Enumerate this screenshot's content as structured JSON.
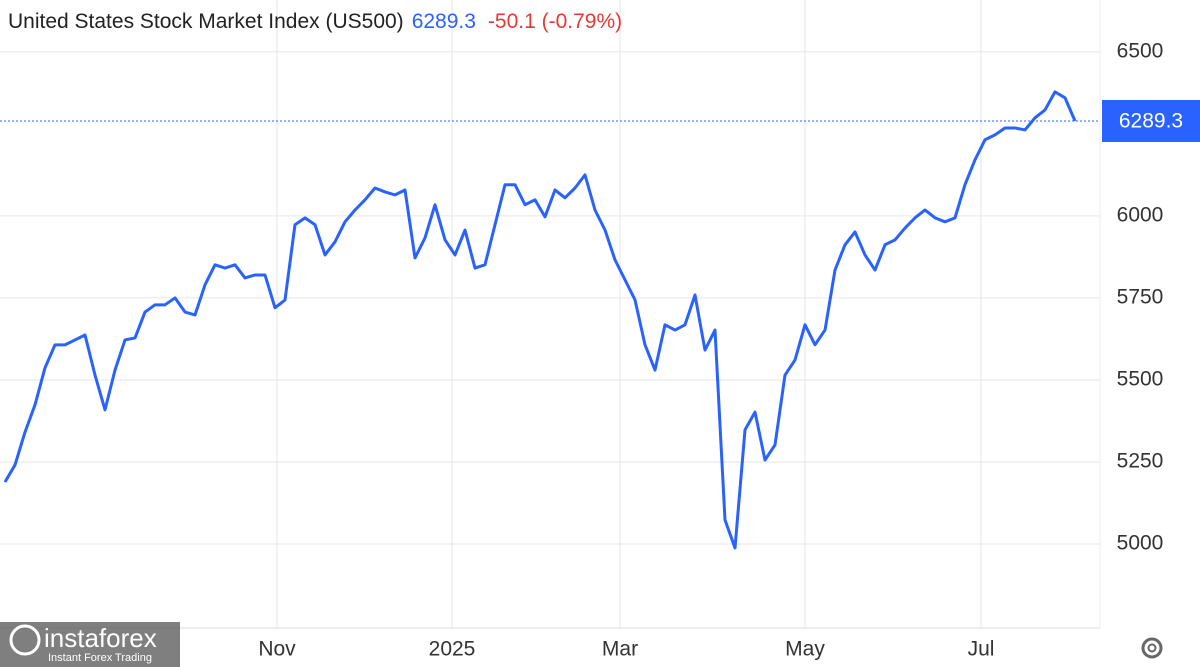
{
  "chart_data": {
    "type": "line",
    "title": "United States Stock Market Index (US500)",
    "change": "-50.1 (-0.79%)",
    "watermark": {
      "brand": "instaforex",
      "tagline": "Instant Forex Trading"
    },
    "series": [
      {
        "color": "#2962ff",
        "values": [
          5189,
          5241,
          5341,
          5424,
          5537,
          5607,
          5607,
          5622,
          5637,
          5515,
          5409,
          5530,
          5622,
          5628,
          5707,
          5729,
          5729,
          5750,
          5707,
          5698,
          5790,
          5851,
          5841,
          5851,
          5811,
          5820,
          5820,
          5720,
          5744,
          5973,
          5994,
          5973,
          5881,
          5921,
          5982,
          6018,
          6049,
          6085,
          6073,
          6064,
          6079,
          5872,
          5933,
          6034,
          5927,
          5881,
          5957,
          5841,
          5851,
          5973,
          6095,
          6095,
          6034,
          6049,
          5997,
          6079,
          6055,
          6085,
          6125,
          6018,
          5957,
          5866,
          5805,
          5744,
          5607,
          5530,
          5668,
          5652,
          5668,
          5759,
          5591,
          5652,
          5073,
          4988,
          5348,
          5402,
          5256,
          5302,
          5515,
          5561,
          5668,
          5607,
          5652,
          5835,
          5912,
          5951,
          5881,
          5835,
          5912,
          5927,
          5963,
          5994,
          6018,
          5994,
          5982,
          5994,
          6095,
          6171,
          6232,
          6247,
          6268,
          6268,
          6262,
          6299,
          6323,
          6378,
          6360,
          6289.3
        ]
      }
    ],
    "xlim": [
      0,
      107
    ],
    "xticks": [
      {
        "value": 27.2,
        "label": "Nov"
      },
      {
        "value": 44.7,
        "label": "2025"
      },
      {
        "value": 61.5,
        "label": "Mar"
      },
      {
        "value": 80,
        "label": "May"
      },
      {
        "value": 97.6,
        "label": "Jul"
      }
    ],
    "ylim": [
      4744,
      6658
    ],
    "yticks": [
      5000,
      5250,
      5500,
      5750,
      6000,
      6500
    ],
    "grid": true
  }
}
